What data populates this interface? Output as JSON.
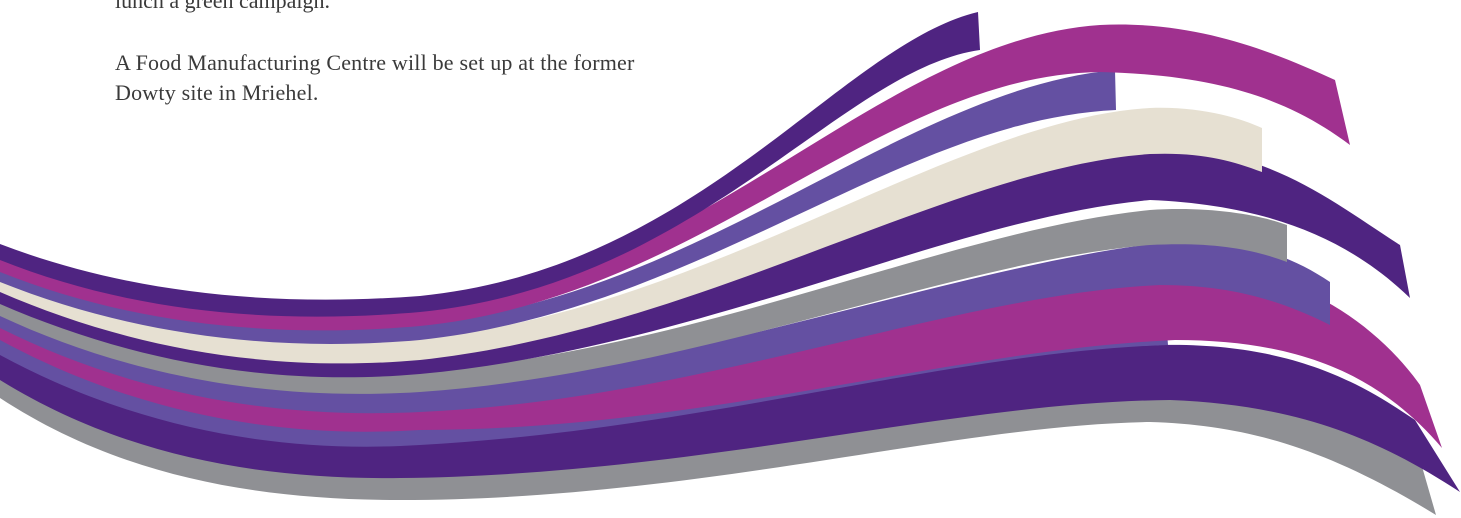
{
  "text": {
    "cut_line": "lunch a green campaign.",
    "paragraph_line_1": "A Food Manufacturing Centre will be set up at the former",
    "paragraph_line_2": "Dowty site in Mriehel."
  },
  "colors": {
    "dark_purple": "#4f2481",
    "magenta": "#a0318f",
    "violet": "#6450a2",
    "cream": "#e6e0d2",
    "grey": "#8f9094",
    "text": "#3a3a3a"
  }
}
